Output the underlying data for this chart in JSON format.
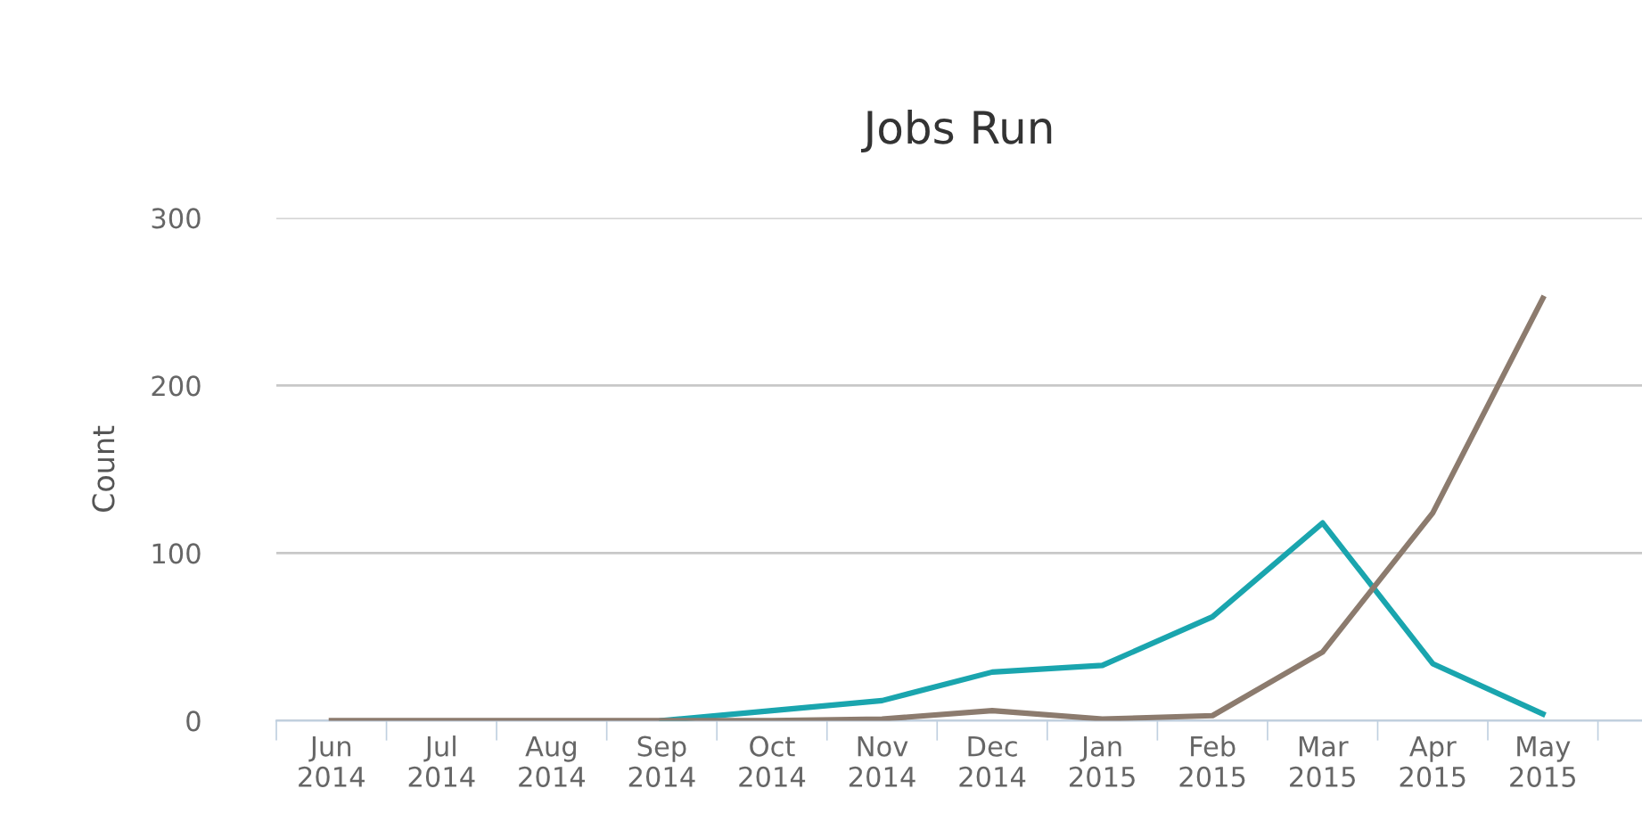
{
  "chart_data": {
    "type": "line",
    "title": "Jobs Run",
    "ylabel": "Count",
    "categories": [
      "Jun\n2014",
      "Jul\n2014",
      "Aug\n2014",
      "Sep\n2014",
      "Oct\n2014",
      "Nov\n2014",
      "Dec\n2014",
      "Jan\n2015",
      "Feb\n2015",
      "Mar\n2015",
      "Apr\n2015",
      "May\n2015"
    ],
    "series": [
      {
        "color": "#1aa5ae",
        "values": [
          null,
          null,
          null,
          0,
          6,
          12,
          29,
          33,
          62,
          118,
          34,
          4
        ]
      },
      {
        "color": "#8c7b6e",
        "values": [
          0,
          0,
          0,
          0,
          0,
          1,
          6,
          1,
          3,
          41,
          124,
          252
        ]
      }
    ],
    "ylim": [
      0,
      300
    ],
    "yticks": [
      0,
      100,
      200,
      300
    ],
    "grid": "y",
    "marker": "none",
    "line_style": "solid"
  }
}
